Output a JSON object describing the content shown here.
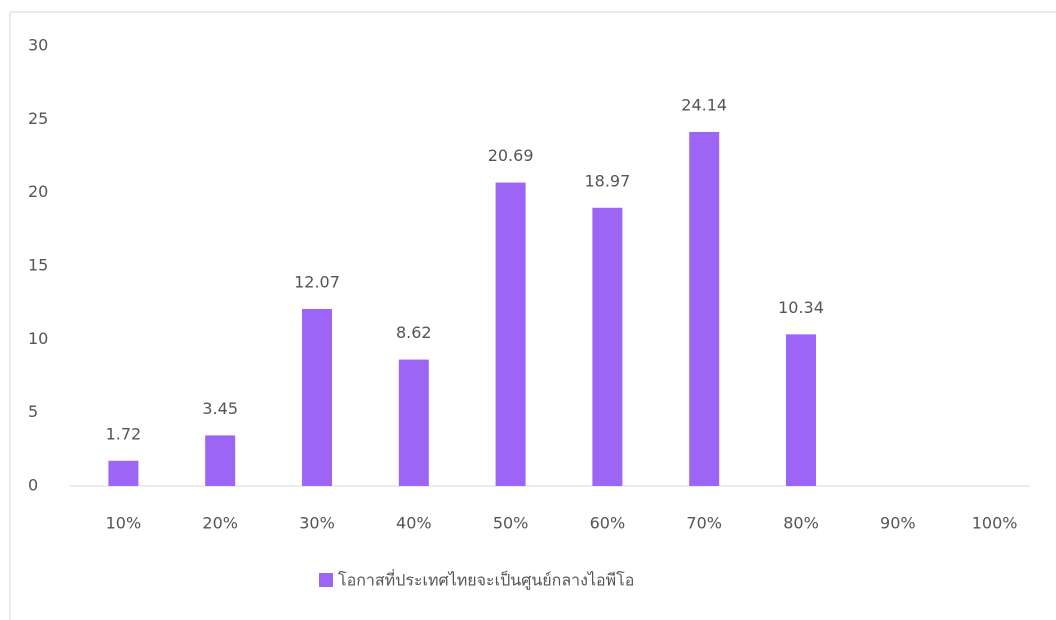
{
  "chart_data": {
    "type": "bar",
    "categories": [
      "10%",
      "20%",
      "30%",
      "40%",
      "50%",
      "60%",
      "70%",
      "80%",
      "90%",
      "100%"
    ],
    "series": [
      {
        "name": "โอกาสที่ประเทศไทยจะเป็นศูนย์กลางไอพีโอ",
        "color": "#9d65f5",
        "values": [
          1.72,
          3.45,
          12.07,
          8.62,
          20.69,
          18.97,
          24.14,
          10.34,
          null,
          null
        ]
      }
    ],
    "ylim": [
      0,
      30
    ],
    "yticks": [
      0,
      5,
      10,
      15,
      20,
      25,
      30
    ],
    "grid": false,
    "legend": "bottom"
  }
}
